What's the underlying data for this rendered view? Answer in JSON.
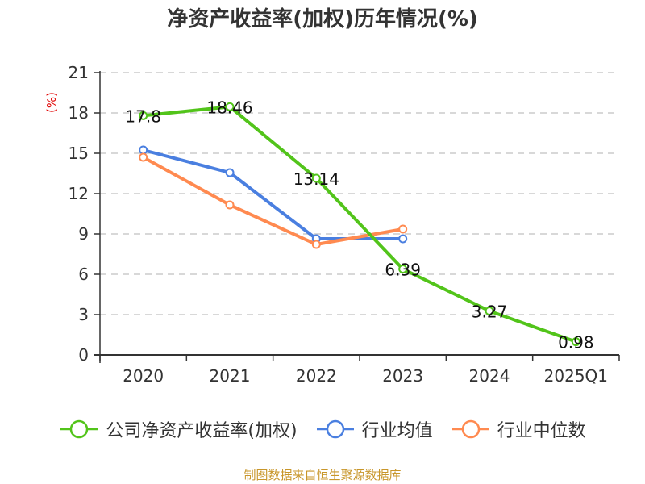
{
  "chart_data": {
    "type": "line",
    "title": "净资产收益率(加权)历年情况(%)",
    "ylabel": "(%)",
    "xlabel": "",
    "ylim": [
      0,
      21
    ],
    "yticks": [
      0,
      3,
      6,
      9,
      12,
      15,
      18,
      21
    ],
    "grid": true,
    "categories": [
      "2020",
      "2021",
      "2022",
      "2023",
      "2024",
      "2025Q1"
    ],
    "series": [
      {
        "name": "公司净资产收益率(加权)",
        "color": "#52c41a",
        "values": [
          17.8,
          18.46,
          13.14,
          6.39,
          3.27,
          0.98
        ],
        "labels": [
          "17.8",
          "18.46",
          "13.14",
          "6.39",
          "3.27",
          "0.98"
        ],
        "show_labels": true
      },
      {
        "name": "行业均值",
        "color": "#4a7fe0",
        "values": [
          15.24,
          13.56,
          8.64,
          8.64,
          null,
          null
        ],
        "show_labels": false
      },
      {
        "name": "行业中位数",
        "color": "#ff8a50",
        "values": [
          14.7,
          11.16,
          8.22,
          9.36,
          null,
          null
        ],
        "show_labels": false
      }
    ],
    "legend_position": "bottom"
  },
  "source_note": "制图数据来自恒生聚源数据库",
  "colors": {
    "axis": "#333333",
    "grid": "#cccccc",
    "unit_label": "#e00000",
    "source_note": "#c8962a"
  }
}
